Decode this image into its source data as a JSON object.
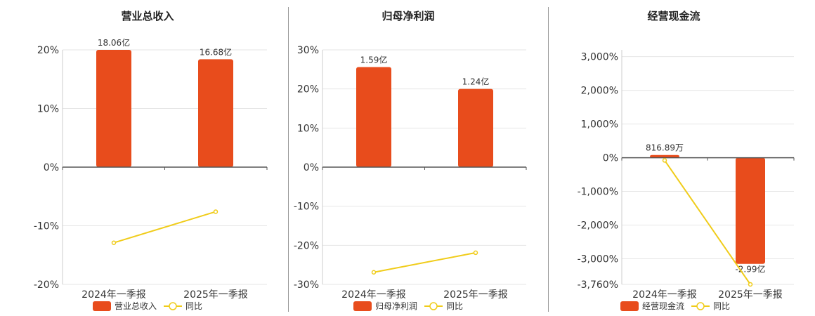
{
  "colors": {
    "bar": "#e84c1c",
    "line": "#f0cc1a",
    "grid": "#e6e6e6",
    "axis": "#555555"
  },
  "charts": [
    {
      "title": "营业总收入",
      "categories": [
        "2024年一季报",
        "2025年一季报"
      ],
      "bar_series": {
        "name": "营业总收入",
        "values": [
          20.0,
          18.4
        ],
        "labels": [
          "18.06亿",
          "16.68亿"
        ]
      },
      "line_series": {
        "name": "同比",
        "values": [
          -12.9,
          -7.6
        ]
      },
      "y_ticks": [
        20,
        10,
        0,
        -10,
        -20
      ],
      "y_tick_labels": [
        "20%",
        "10%",
        "0%",
        "-10%",
        "-20%"
      ],
      "ylim": [
        -20,
        20
      ]
    },
    {
      "title": "归母净利润",
      "categories": [
        "2024年一季报",
        "2025年一季报"
      ],
      "bar_series": {
        "name": "归母净利润",
        "values": [
          25.6,
          20.0
        ],
        "labels": [
          "1.59亿",
          "1.24亿"
        ]
      },
      "line_series": {
        "name": "同比",
        "values": [
          -26.9,
          -21.9
        ]
      },
      "y_ticks": [
        30,
        20,
        10,
        0,
        -10,
        -20,
        -30
      ],
      "y_tick_labels": [
        "30%",
        "20%",
        "10%",
        "0%",
        "-10%",
        "-20%",
        "-30%"
      ],
      "ylim": [
        -30,
        30
      ]
    },
    {
      "title": "经营现金流",
      "categories": [
        "2024年一季报",
        "2025年一季报"
      ],
      "bar_series": {
        "name": "经营现金流",
        "values": [
          80,
          -3150
        ],
        "labels": [
          "816.89万",
          "-2.99亿"
        ]
      },
      "line_series": {
        "name": "同比",
        "values": [
          -80,
          -3760
        ]
      },
      "y_ticks": [
        3000,
        2000,
        1000,
        0,
        -1000,
        -2000,
        -3000,
        -3760
      ],
      "y_tick_labels": [
        "3,000%",
        "2,000%",
        "1,000%",
        "0%",
        "-1,000%",
        "-2,000%",
        "-3,000%",
        "-3,760%"
      ],
      "ylim": [
        -3760,
        3200
      ]
    }
  ]
}
